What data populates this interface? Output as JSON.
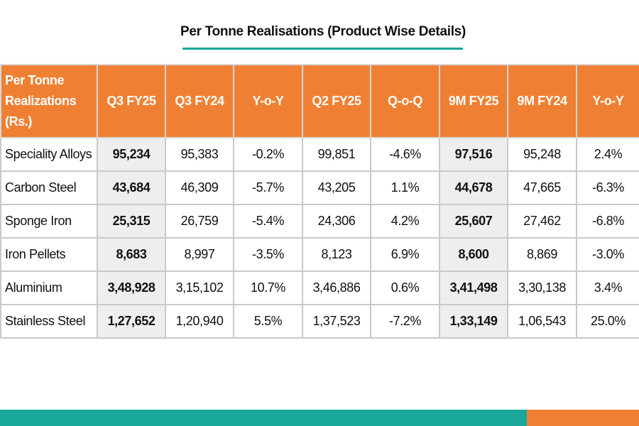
{
  "title": "Per Tonne Realisations (Product Wise Details)",
  "colors": {
    "header_bg": "#ef8033",
    "accent_teal": "#19a79a",
    "highlight_bg": "#eeeeee",
    "border": "#c9c9c9"
  },
  "table": {
    "header_lines": [
      "Per Tonne",
      "Realizations",
      "(Rs.)"
    ],
    "columns": [
      "Q3 FY25",
      "Q3 FY24",
      "Y-o-Y",
      "Q2 FY25",
      "Q-o-Q",
      "9M FY25",
      "9M FY24",
      "Y-o-Y"
    ],
    "rows": [
      {
        "product": "Speciality Alloys",
        "values": [
          "95,234",
          "95,383",
          "-0.2%",
          "99,851",
          "-4.6%",
          "97,516",
          "95,248",
          "2.4%"
        ]
      },
      {
        "product": "Carbon Steel",
        "values": [
          "43,684",
          "46,309",
          "-5.7%",
          "43,205",
          "1.1%",
          "44,678",
          "47,665",
          "-6.3%"
        ]
      },
      {
        "product": "Sponge Iron",
        "values": [
          "25,315",
          "26,759",
          "-5.4%",
          "24,306",
          "4.2%",
          "25,607",
          "27,462",
          "-6.8%"
        ]
      },
      {
        "product": "Iron Pellets",
        "values": [
          "8,683",
          "8,997",
          "-3.5%",
          "8,123",
          "6.9%",
          "8,600",
          "8,869",
          "-3.0%"
        ]
      },
      {
        "product": "Aluminium",
        "values": [
          "3,48,928",
          "3,15,102",
          "10.7%",
          "3,46,886",
          "0.6%",
          "3,41,498",
          "3,30,138",
          "3.4%"
        ]
      },
      {
        "product": "Stainless Steel",
        "values": [
          "1,27,652",
          "1,20,940",
          "5.5%",
          "1,37,523",
          "-7.2%",
          "1,33,149",
          "1,06,543",
          "25.0%"
        ]
      }
    ]
  }
}
